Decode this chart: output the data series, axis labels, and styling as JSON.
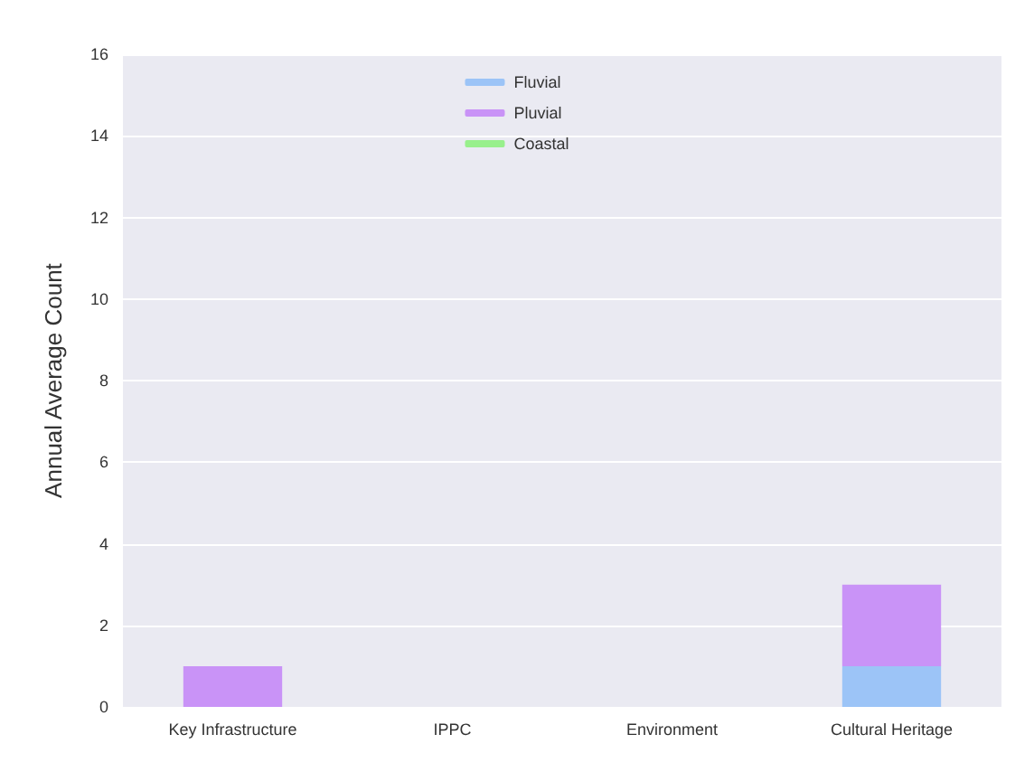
{
  "chart_data": {
    "type": "bar",
    "stacked": true,
    "ylabel": "Annual Average Count",
    "categories": [
      "Key Infrastructure",
      "IPPC",
      "Environment",
      "Cultural Heritage"
    ],
    "series": [
      {
        "name": "Fluvial",
        "color": "#9cc4f7",
        "values": [
          0,
          0,
          0,
          1
        ]
      },
      {
        "name": "Pluvial",
        "color": "#c993f7",
        "values": [
          1,
          0,
          0,
          2
        ]
      },
      {
        "name": "Coastal",
        "color": "#98f08c",
        "values": [
          0,
          0,
          0,
          0
        ]
      }
    ],
    "ylim": [
      0,
      16
    ],
    "yticks": [
      0,
      2,
      4,
      6,
      8,
      10,
      12,
      14,
      16
    ],
    "grid": "y",
    "legend": "top"
  }
}
